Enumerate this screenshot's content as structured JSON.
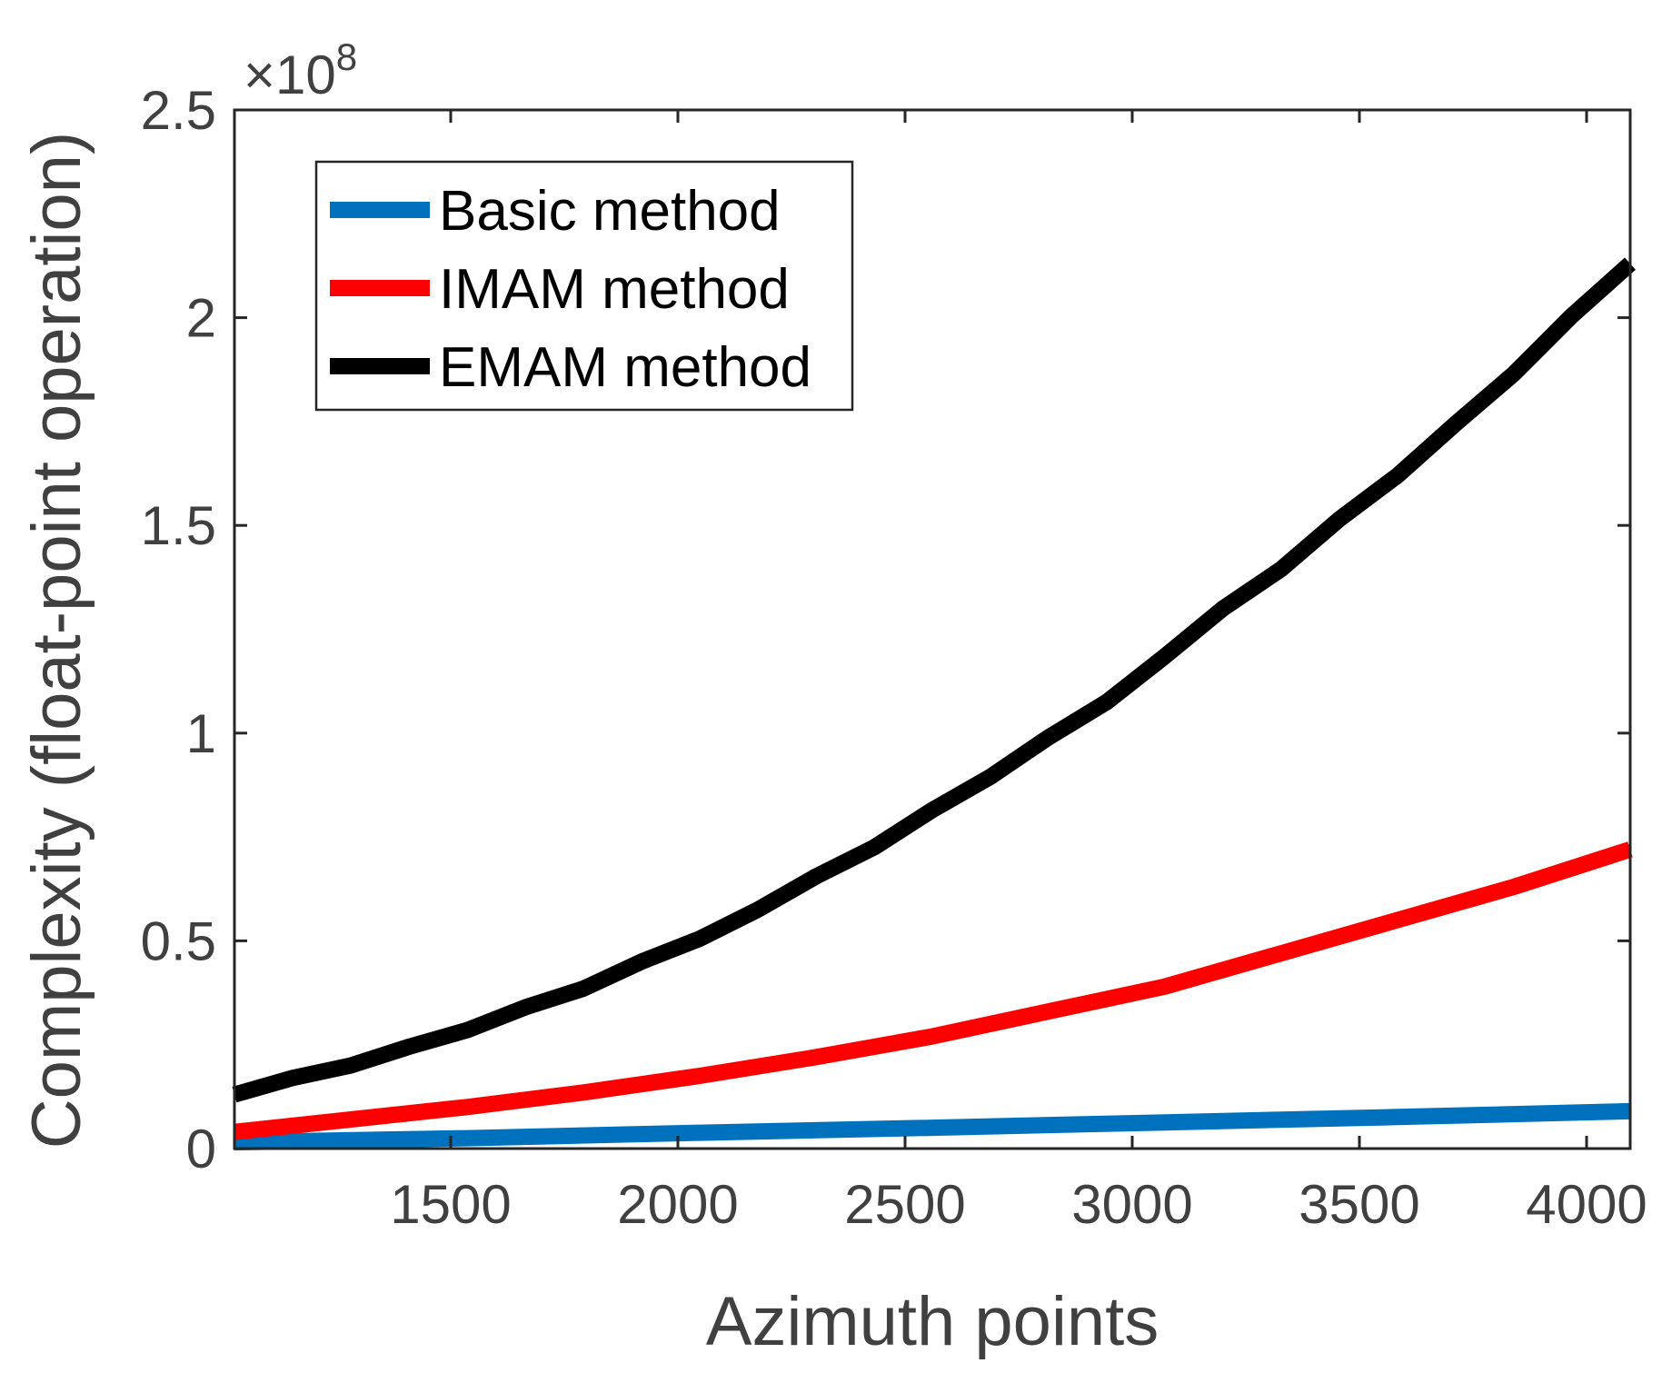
{
  "chart_data": {
    "type": "line",
    "title": "",
    "xlabel": "Azimuth points",
    "ylabel": "Complexity (float-point operation)",
    "y_exponent_label": "×10",
    "y_exponent_power": "8",
    "xlim": [
      1024,
      4096
    ],
    "ylim": [
      0,
      2.5
    ],
    "xticks": [
      1500,
      2000,
      2500,
      3000,
      3500,
      4000
    ],
    "xtick_labels": [
      "1500",
      "2000",
      "2500",
      "3000",
      "3500",
      "4000"
    ],
    "yticks": [
      0,
      0.5,
      1,
      1.5,
      2,
      2.5
    ],
    "ytick_labels": [
      "0",
      "0.5",
      "1",
      "1.5",
      "2",
      "2.5"
    ],
    "grid": false,
    "legend_position": "top-left",
    "series": [
      {
        "name": "Basic method",
        "color": "#0072BD",
        "x": [
          1024,
          1536,
          2048,
          2560,
          3072,
          3584,
          4096
        ],
        "y": [
          0.015,
          0.025,
          0.038,
          0.05,
          0.063,
          0.076,
          0.09
        ]
      },
      {
        "name": "IMAM method",
        "color": "#FF0000",
        "x": [
          1024,
          1280,
          1536,
          1792,
          2048,
          2304,
          2560,
          2816,
          2944,
          3072,
          3328,
          3584,
          3840,
          4096
        ],
        "y": [
          0.04,
          0.07,
          0.1,
          0.135,
          0.175,
          0.22,
          0.27,
          0.33,
          0.36,
          0.39,
          0.47,
          0.55,
          0.63,
          0.72
        ]
      },
      {
        "name": "EMAM method",
        "color": "#000000",
        "x": [
          1024,
          1152,
          1280,
          1408,
          1536,
          1664,
          1792,
          1920,
          2048,
          2176,
          2304,
          2432,
          2560,
          2688,
          2816,
          2944,
          3072,
          3200,
          3328,
          3456,
          3584,
          3712,
          3840,
          3968,
          4096
        ],
        "y": [
          0.13,
          0.17,
          0.2,
          0.245,
          0.285,
          0.34,
          0.385,
          0.45,
          0.505,
          0.575,
          0.655,
          0.725,
          0.815,
          0.895,
          0.99,
          1.075,
          1.185,
          1.3,
          1.395,
          1.515,
          1.62,
          1.745,
          1.865,
          2.005,
          2.13
        ]
      }
    ]
  }
}
